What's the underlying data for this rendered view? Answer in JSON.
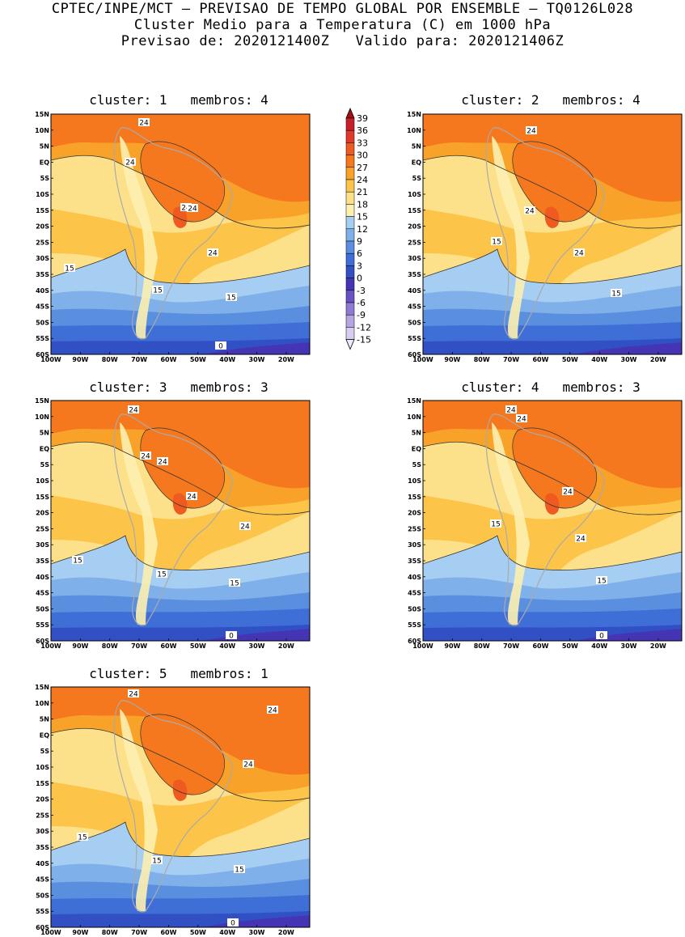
{
  "header": {
    "line1": "CPTEC/INPE/MCT – PREVISAO DE TEMPO GLOBAL POR ENSEMBLE – TQ0126L028",
    "line2": "Cluster Medio para a Temperatura (C) em 1000 hPa",
    "line3": "Previsao de: 2020121400Z   Valido para: 2020121406Z"
  },
  "axes": {
    "lat_labels": [
      "15N",
      "10N",
      "5N",
      "EQ",
      "5S",
      "10S",
      "15S",
      "20S",
      "25S",
      "30S",
      "35S",
      "40S",
      "45S",
      "50S",
      "55S",
      "60S"
    ],
    "lon_labels": [
      "100W",
      "90W",
      "80W",
      "70W",
      "60W",
      "50W",
      "40W",
      "30W",
      "20W"
    ]
  },
  "colorbar": {
    "levels": [
      "39",
      "36",
      "33",
      "30",
      "27",
      "24",
      "21",
      "18",
      "15",
      "12",
      "9",
      "6",
      "3",
      "0",
      "-3",
      "-6",
      "-9",
      "-12",
      "-15"
    ],
    "colors": [
      "#a50f15",
      "#c8202a",
      "#e03a2a",
      "#ee5a20",
      "#f5781e",
      "#f9a22a",
      "#fcc54a",
      "#fde18a",
      "#fdf0b0",
      "#a6cdf2",
      "#7fb0ea",
      "#5a8fe0",
      "#3f6fd6",
      "#3050c4",
      "#4535b4",
      "#6a52c4",
      "#8f7bd2",
      "#b5a5e0",
      "#d6cdf0",
      "#eeeaf8"
    ]
  },
  "panels": [
    {
      "title": "cluster: 1   membros: 4",
      "labels": [
        "24",
        "24",
        "24",
        "24",
        "24",
        "15",
        "15",
        "15",
        "0"
      ]
    },
    {
      "title": "cluster: 2   membros: 4",
      "labels": [
        "24",
        "24",
        "24",
        "15",
        "15"
      ]
    },
    {
      "title": "cluster: 3   membros: 3",
      "labels": [
        "24",
        "24",
        "24",
        "24",
        "24",
        "15",
        "15",
        "15",
        "0"
      ]
    },
    {
      "title": "cluster: 4   membros: 3",
      "labels": [
        "24",
        "24",
        "24",
        "24",
        "15",
        "15",
        "0"
      ]
    },
    {
      "title": "cluster: 5   membros: 1",
      "labels": [
        "24",
        "24",
        "24",
        "15",
        "15",
        "15",
        "0"
      ]
    }
  ]
}
